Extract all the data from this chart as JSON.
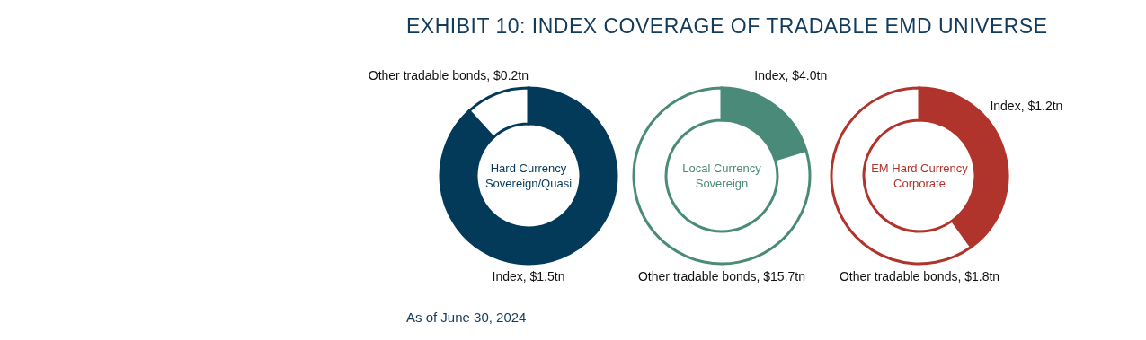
{
  "chart_data": [
    {
      "type": "donut",
      "title": "EXHIBIT 10: INDEX COVERAGE OF TRADABLE EMD UNIVERSE",
      "categories": [
        "Index",
        "Other tradable bonds"
      ],
      "values": [
        1.5,
        0.2
      ],
      "colors": [
        "#033a5a",
        "#ffffff"
      ],
      "value_labels": [
        "$1.5tn",
        "$0.2tn"
      ],
      "annotations": [
        "Hard Currency Sovereign/Quasi",
        "As of June 30, 2024"
      ]
    },
    {
      "type": "donut",
      "categories": [
        "Index",
        "Other tradable bonds"
      ],
      "values": [
        4.0,
        15.7
      ],
      "colors": [
        "#4a8a78",
        "#ffffff"
      ],
      "value_labels": [
        "$4.0tn",
        "$15.7tn"
      ],
      "annotations": [
        "Local Currency Sovereign"
      ]
    },
    {
      "type": "donut",
      "categories": [
        "Index",
        "Other tradable bonds"
      ],
      "values": [
        1.2,
        1.8
      ],
      "colors": [
        "#b0342c",
        "#ffffff"
      ],
      "value_labels": [
        "$1.2tn",
        "$1.8tn"
      ],
      "annotations": [
        "EM Hard Currency Corporate"
      ]
    }
  ]
}
